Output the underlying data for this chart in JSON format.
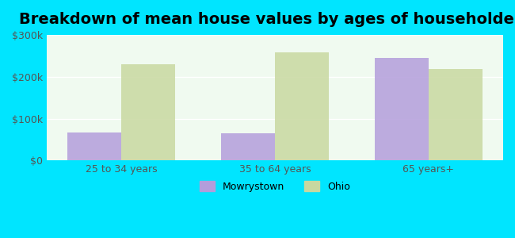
{
  "title": "Breakdown of mean house values by ages of householders",
  "categories": [
    "25 to 34 years",
    "35 to 64 years",
    "65 years+"
  ],
  "mowrystown_values": [
    67000,
    65000,
    245000
  ],
  "ohio_values": [
    230000,
    258000,
    218000
  ],
  "mowrystown_color": "#b39ddb",
  "ohio_color": "#c8d8a0",
  "background_color": "#00e5ff",
  "plot_bg_color": "#f0faf0",
  "ylim": [
    0,
    300000
  ],
  "yticks": [
    0,
    100000,
    200000,
    300000
  ],
  "ytick_labels": [
    "$0",
    "$100k",
    "$200k",
    "$300k"
  ],
  "legend_labels": [
    "Mowrystown",
    "Ohio"
  ],
  "bar_width": 0.35,
  "title_fontsize": 14
}
